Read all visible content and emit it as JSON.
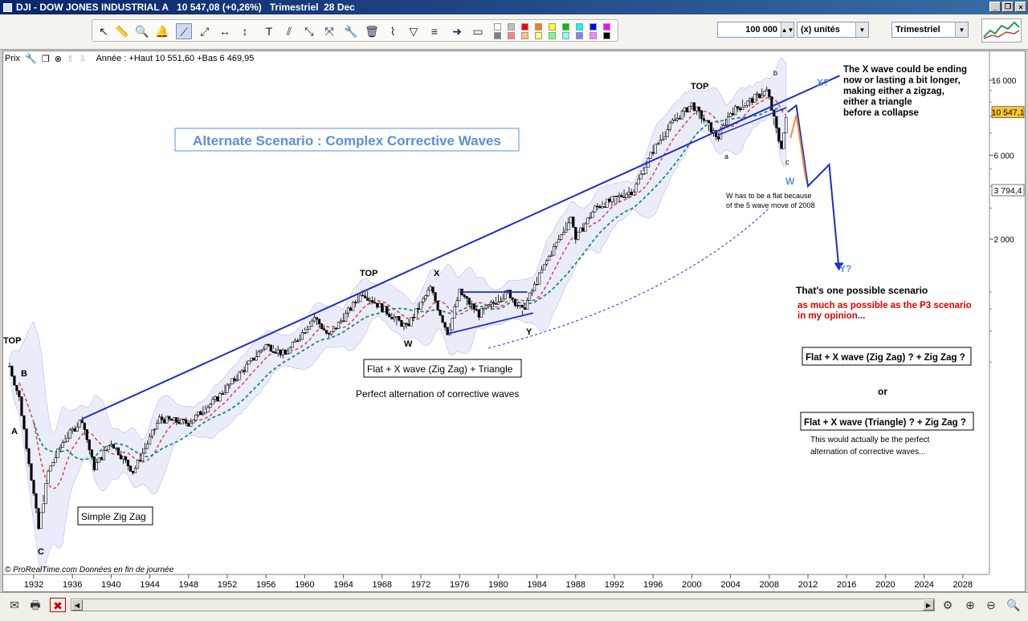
{
  "window": {
    "title_symbol": "DJI - DOW JONES INDUSTRIAL A",
    "title_value": "10 547,08 (+0,26%)",
    "title_period": "Trimestriel  28 Dec"
  },
  "toolbar": {
    "quantity_value": "100 000",
    "units_label": "(x) unités",
    "period_select": "Trimestriel",
    "swatch_colors": [
      "#ffffff",
      "#c0c0c0",
      "#ff0000",
      "#ff8000",
      "#ffff00",
      "#00c000",
      "#00ffff",
      "#0000ff",
      "#ff00ff",
      "#808080",
      "#ff8080",
      "#ffc080",
      "#ffff80",
      "#80ff80",
      "#80ffff",
      "#8080ff",
      "#ff80ff",
      "#000000"
    ]
  },
  "chart_header": {
    "prix_label": "Prix",
    "info_text": "Année : +Haut 10 551,60 +Bas 6 469,95"
  },
  "chart_data": {
    "type": "candlestick",
    "title": "DJI - DOW JONES INDUSTRIAL A",
    "x_scale": "years",
    "x_ticks": [
      "1932",
      "1936",
      "1940",
      "1944",
      "1948",
      "1952",
      "1956",
      "1960",
      "1964",
      "1968",
      "1972",
      "1976",
      "1980",
      "1984",
      "1988",
      "1992",
      "1996",
      "2000",
      "2004",
      "2008",
      "2012",
      "2016",
      "2020",
      "2024",
      "2028"
    ],
    "y_scale": "log",
    "y_ticks": [
      "16 000",
      "6 000",
      "2 000"
    ],
    "price_labels": [
      "10 547,1",
      "3 794,4"
    ],
    "price_series_approx": [
      {
        "year": 1929.5,
        "value": 380
      },
      {
        "year": 1930.5,
        "value": 250
      },
      {
        "year": 1931.5,
        "value": 110
      },
      {
        "year": 1932.5,
        "value": 45
      },
      {
        "year": 1933.5,
        "value": 95
      },
      {
        "year": 1935,
        "value": 140
      },
      {
        "year": 1937,
        "value": 190
      },
      {
        "year": 1938.2,
        "value": 100
      },
      {
        "year": 1940,
        "value": 140
      },
      {
        "year": 1942.3,
        "value": 95
      },
      {
        "year": 1945,
        "value": 190
      },
      {
        "year": 1948,
        "value": 180
      },
      {
        "year": 1951,
        "value": 250
      },
      {
        "year": 1956,
        "value": 500
      },
      {
        "year": 1958,
        "value": 440
      },
      {
        "year": 1961,
        "value": 720
      },
      {
        "year": 1962.5,
        "value": 560
      },
      {
        "year": 1966,
        "value": 990
      },
      {
        "year": 1970.5,
        "value": 630
      },
      {
        "year": 1973,
        "value": 1050
      },
      {
        "year": 1974.8,
        "value": 580
      },
      {
        "year": 1976,
        "value": 1000
      },
      {
        "year": 1978,
        "value": 750
      },
      {
        "year": 1981,
        "value": 1000
      },
      {
        "year": 1982.5,
        "value": 780
      },
      {
        "year": 1985,
        "value": 1500
      },
      {
        "year": 1987.6,
        "value": 2700
      },
      {
        "year": 1988,
        "value": 2000
      },
      {
        "year": 1990,
        "value": 3000
      },
      {
        "year": 1994,
        "value": 3800
      },
      {
        "year": 1996,
        "value": 6400
      },
      {
        "year": 1998,
        "value": 9200
      },
      {
        "year": 2000,
        "value": 11700
      },
      {
        "year": 2002.7,
        "value": 7500
      },
      {
        "year": 2004,
        "value": 10500
      },
      {
        "year": 2007.8,
        "value": 14000
      },
      {
        "year": 2009.2,
        "value": 6550
      },
      {
        "year": 2009.9,
        "value": 10547
      }
    ],
    "projection": [
      {
        "year": 2009.9,
        "value": 10547
      },
      {
        "year": 2010.8,
        "value": 11500
      },
      {
        "year": 2012,
        "value": 4000
      },
      {
        "year": 2014.2,
        "value": 5300
      },
      {
        "year": 2015.2,
        "value": 1350
      }
    ]
  },
  "annotations": {
    "scenario_title": "Alternate Scenario : Complex Corrective Waves",
    "wave_top_left": "TOP",
    "wave_B": "B",
    "wave_A": "A",
    "wave_C": "C",
    "wave_top_1966": "TOP",
    "wave_X": "X",
    "wave_W": "W",
    "wave_Y": "Y",
    "wave_top_2000": "TOP",
    "wave_b": "b",
    "wave_a": "a",
    "wave_c": "c",
    "wave_W2": "W",
    "wave_X2": "X?",
    "wave_Y2": "Y?",
    "simple_zigzag": "Simple Zig Zag",
    "flat_box": "Flat + X wave (Zig Zag) + Triangle",
    "perfect_alt": "Perfect alternation of corrective waves",
    "w_flat_1": "W has to be a flat because",
    "w_flat_2": "of the 5 wave move of 2008",
    "xwave_1": "The X wave could be ending",
    "xwave_2": "now or lasting a bit longer,",
    "xwave_3": "making either a zigzag,",
    "xwave_4": "either a triangle",
    "xwave_5": "before a collapse",
    "one_scenario": "That's one possible scenario",
    "p3_1": "as much as possible as the P3 scenario",
    "p3_2": "in my opinion...",
    "option1": "Flat + X wave (Zig Zag) ? + Zig Zag ?",
    "or": "or",
    "option2": "Flat + X wave (Triangle) ? + Zig Zag ?",
    "perfect_1": "This would actually be the perfect",
    "perfect_2": "alternation of corrective waves...",
    "copyright": "© ProRealTime.com  Données en fin de journée"
  },
  "colors": {
    "candles": "#000000",
    "trendline": "#1a2ecc",
    "ma_short": "#e04040",
    "ma_long": "#1a8a70",
    "bands": "#dcdff5",
    "projection": "#1a2ecc",
    "projection_alt": "#ff8c3a",
    "scenario_title": "#5a8fdf",
    "red_text": "#e00000"
  }
}
